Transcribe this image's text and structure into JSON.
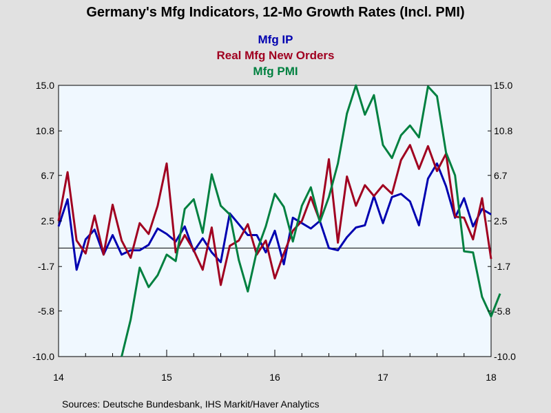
{
  "chart_data": {
    "type": "line",
    "title": "Germany's Mfg Indicators, 12-Mo Growth Rates (Incl. PMI)",
    "source": "Sources:  Deutsche Bundesbank, IHS Markit/Haver Analytics",
    "x_labels": [
      "14",
      "15",
      "16",
      "17",
      "18"
    ],
    "y_ticks": [
      "15.0",
      "10.8",
      "6.7",
      "2.5",
      "-1.7",
      "-5.8",
      "-10.0"
    ],
    "ylim": [
      -10.0,
      15.0
    ],
    "zero_line": 0,
    "grid": false,
    "legend_position": "top-center",
    "background_color": "#e1e1e1",
    "plot_color": "#f0f8ff",
    "series": [
      {
        "name": "Mfg IP",
        "color": "#0000b0",
        "values": [
          2.0,
          4.5,
          -2.0,
          0.8,
          1.7,
          -0.6,
          1.2,
          -0.6,
          -0.2,
          -0.2,
          0.3,
          1.8,
          1.3,
          0.6,
          2.0,
          -0.3,
          0.9,
          -0.4,
          -1.3,
          3.2,
          2.2,
          1.2,
          1.2,
          -0.4,
          1.6,
          -1.5,
          2.8,
          2.3,
          1.8,
          2.5,
          0.0,
          -0.2,
          1.0,
          1.9,
          2.1,
          4.8,
          2.3,
          4.7,
          5.0,
          4.3,
          2.1,
          6.4,
          7.8,
          5.7,
          2.8,
          4.6,
          2.0,
          3.6,
          3.1
        ]
      },
      {
        "name": "Real Mfg New Orders",
        "color": "#a00020",
        "values": [
          2.5,
          7.0,
          0.7,
          -0.5,
          3.0,
          -0.6,
          4.0,
          0.7,
          -0.9,
          2.3,
          1.3,
          3.9,
          7.8,
          -0.4,
          1.2,
          -0.2,
          -2.0,
          1.9,
          -3.4,
          0.2,
          0.7,
          2.2,
          -0.6,
          0.7,
          -2.8,
          -0.5,
          1.6,
          2.5,
          4.7,
          2.5,
          8.2,
          0.5,
          6.6,
          3.9,
          5.8,
          4.8,
          5.8,
          5.0,
          8.1,
          9.5,
          7.3,
          9.4,
          7.1,
          8.7,
          2.9,
          2.8,
          0.8,
          4.6,
          -1.0
        ]
      },
      {
        "name": "Mfg PMI",
        "color": "#008040",
        "values": [
          null,
          null,
          null,
          null,
          null,
          null,
          null,
          -10.0,
          -6.6,
          -1.8,
          -3.6,
          -2.5,
          -0.6,
          -1.2,
          3.6,
          4.5,
          1.4,
          6.8,
          3.9,
          3.1,
          -1.1,
          -4.0,
          -0.3,
          2.0,
          5.0,
          3.8,
          0.6,
          3.9,
          5.6,
          2.4,
          4.7,
          7.8,
          12.4,
          15.0,
          12.3,
          14.1,
          9.5,
          8.3,
          10.4,
          11.3,
          10.2,
          14.9,
          14.0,
          8.8,
          6.7,
          -0.3,
          -0.4,
          -4.5,
          -6.3,
          -4.2
        ]
      }
    ]
  }
}
